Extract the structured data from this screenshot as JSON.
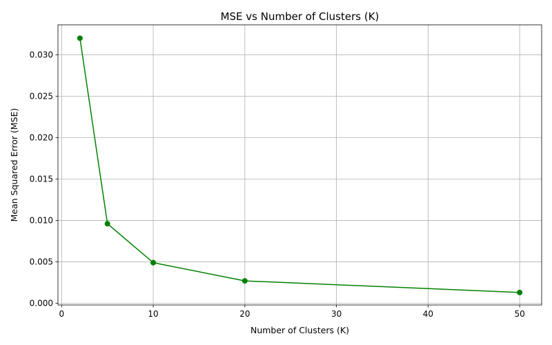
{
  "chart_data": {
    "type": "line",
    "title": "MSE vs Number of Clusters (K)",
    "xlabel": "Number of Clusters (K)",
    "ylabel": "Mean Squared Error (MSE)",
    "x": [
      2,
      5,
      10,
      20,
      50
    ],
    "series": [
      {
        "values": [
          0.032,
          0.0096,
          0.0049,
          0.0027,
          0.0013
        ]
      }
    ],
    "xlim": [
      -0.4,
      52.4
    ],
    "ylim": [
      -0.00021,
      0.03361
    ],
    "xticks": [
      0,
      10,
      20,
      30,
      40,
      50
    ],
    "xtick_labels": [
      "0",
      "10",
      "20",
      "30",
      "40",
      "50"
    ],
    "yticks": [
      0.0,
      0.005,
      0.01,
      0.015,
      0.02,
      0.025,
      0.03
    ],
    "ytick_labels": [
      "0.000",
      "0.005",
      "0.010",
      "0.015",
      "0.020",
      "0.025",
      "0.030"
    ],
    "grid": true,
    "marker": "circle",
    "line_color": "#008000"
  }
}
